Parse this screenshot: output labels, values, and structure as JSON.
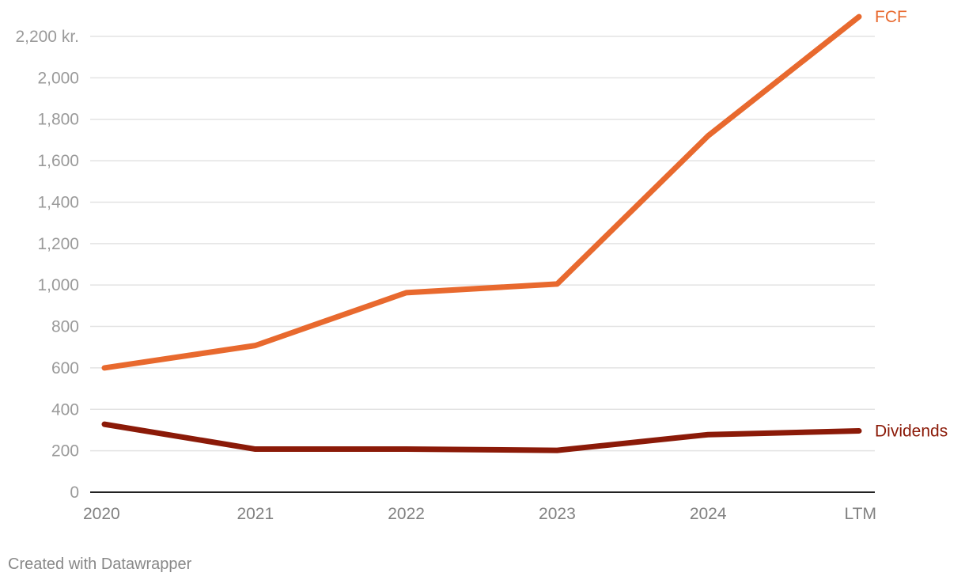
{
  "footer": {
    "credit": "Created with Datawrapper"
  },
  "chart_data": {
    "type": "line",
    "title": "",
    "xlabel": "",
    "ylabel": "",
    "categories": [
      "2020",
      "2021",
      "2022",
      "2023",
      "2024",
      "LTM"
    ],
    "y_ticks": [
      0,
      200,
      400,
      600,
      800,
      1000,
      1200,
      1400,
      1600,
      1800,
      2000,
      2200
    ],
    "y_tick_labels": [
      "0",
      "200",
      "400",
      "600",
      "800",
      "1,000",
      "1,200",
      "1,400",
      "1,600",
      "1,800",
      "2,000",
      "2,200 kr."
    ],
    "ylim": [
      0,
      2200
    ],
    "grid": true,
    "legend": "inline labels at line ends (right)",
    "series": [
      {
        "name": "FCF",
        "color": "#e8692e",
        "values": [
          600,
          708,
          963,
          1005,
          1720,
          2295
        ]
      },
      {
        "name": "Dividends",
        "color": "#8b1a08",
        "values": [
          328,
          208,
          208,
          202,
          278,
          296
        ]
      }
    ]
  }
}
